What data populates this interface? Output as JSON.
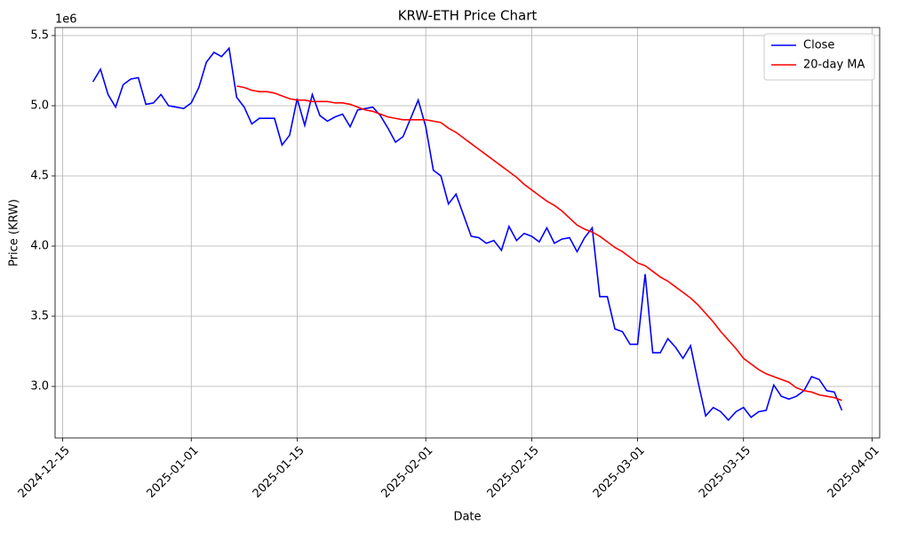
{
  "chart_data": {
    "type": "line",
    "title": "KRW-ETH Price Chart",
    "x_label": "Date",
    "y_label": "Price (KRW)",
    "y_offset_label": "1e6",
    "x": [
      "2024-12-19",
      "2024-12-20",
      "2024-12-21",
      "2024-12-22",
      "2024-12-23",
      "2024-12-24",
      "2024-12-25",
      "2024-12-26",
      "2024-12-27",
      "2024-12-28",
      "2024-12-29",
      "2024-12-30",
      "2024-12-31",
      "2025-01-01",
      "2025-01-02",
      "2025-01-03",
      "2025-01-04",
      "2025-01-05",
      "2025-01-06",
      "2025-01-07",
      "2025-01-08",
      "2025-01-09",
      "2025-01-10",
      "2025-01-11",
      "2025-01-12",
      "2025-01-13",
      "2025-01-14",
      "2025-01-15",
      "2025-01-16",
      "2025-01-17",
      "2025-01-18",
      "2025-01-19",
      "2025-01-20",
      "2025-01-21",
      "2025-01-22",
      "2025-01-23",
      "2025-01-24",
      "2025-01-25",
      "2025-01-26",
      "2025-01-27",
      "2025-01-28",
      "2025-01-29",
      "2025-01-30",
      "2025-01-31",
      "2025-02-01",
      "2025-02-02",
      "2025-02-03",
      "2025-02-04",
      "2025-02-05",
      "2025-02-06",
      "2025-02-07",
      "2025-02-08",
      "2025-02-09",
      "2025-02-10",
      "2025-02-11",
      "2025-02-12",
      "2025-02-13",
      "2025-02-14",
      "2025-02-15",
      "2025-02-16",
      "2025-02-17",
      "2025-02-18",
      "2025-02-19",
      "2025-02-20",
      "2025-02-21",
      "2025-02-22",
      "2025-02-23",
      "2025-02-24",
      "2025-02-25",
      "2025-02-26",
      "2025-02-27",
      "2025-02-28",
      "2025-03-01",
      "2025-03-02",
      "2025-03-03",
      "2025-03-04",
      "2025-03-05",
      "2025-03-06",
      "2025-03-07",
      "2025-03-08",
      "2025-03-09",
      "2025-03-10",
      "2025-03-11",
      "2025-03-12",
      "2025-03-13",
      "2025-03-14",
      "2025-03-15",
      "2025-03-16",
      "2025-03-17",
      "2025-03-18",
      "2025-03-19",
      "2025-03-20",
      "2025-03-21",
      "2025-03-22",
      "2025-03-23",
      "2025-03-24",
      "2025-03-25",
      "2025-03-26",
      "2025-03-27",
      "2025-03-28"
    ],
    "series": [
      {
        "name": "Close",
        "color": "#0000ff",
        "values": [
          5170000,
          5260000,
          5080000,
          4990000,
          5150000,
          5190000,
          5200000,
          5010000,
          5020000,
          5080000,
          5000000,
          4990000,
          4980000,
          5020000,
          5130000,
          5310000,
          5380000,
          5350000,
          5410000,
          5060000,
          4990000,
          4870000,
          4910000,
          4910000,
          4910000,
          4720000,
          4790000,
          5050000,
          4860000,
          5080000,
          4930000,
          4890000,
          4920000,
          4940000,
          4850000,
          4970000,
          4980000,
          4990000,
          4930000,
          4840000,
          4740000,
          4780000,
          4910000,
          5040000,
          4850000,
          4540000,
          4500000,
          4300000,
          4370000,
          4220000,
          4070000,
          4060000,
          4020000,
          4040000,
          3970000,
          4140000,
          4040000,
          4090000,
          4070000,
          4030000,
          4130000,
          4020000,
          4050000,
          4060000,
          3960000,
          4060000,
          4130000,
          3640000,
          3640000,
          3410000,
          3390000,
          3300000,
          3300000,
          3800000,
          3240000,
          3240000,
          3340000,
          3280000,
          3200000,
          3290000,
          3030000,
          2790000,
          2850000,
          2820000,
          2760000,
          2820000,
          2850000,
          2780000,
          2820000,
          2830000,
          3010000,
          2930000,
          2910000,
          2930000,
          2970000,
          3070000,
          3050000,
          2970000,
          2960000,
          2830000
        ]
      },
      {
        "name": "20-day MA",
        "color": "#ff0000",
        "values": [
          null,
          null,
          null,
          null,
          null,
          null,
          null,
          null,
          null,
          null,
          null,
          null,
          null,
          null,
          null,
          null,
          null,
          null,
          null,
          5140000,
          5130000,
          5110000,
          5100000,
          5100000,
          5090000,
          5070000,
          5050000,
          5040000,
          5040000,
          5030000,
          5030000,
          5030000,
          5020000,
          5020000,
          5010000,
          4990000,
          4970000,
          4960000,
          4940000,
          4920000,
          4910000,
          4900000,
          4900000,
          4900000,
          4900000,
          4890000,
          4880000,
          4840000,
          4810000,
          4770000,
          4730000,
          4690000,
          4650000,
          4610000,
          4570000,
          4530000,
          4490000,
          4440000,
          4400000,
          4360000,
          4320000,
          4290000,
          4250000,
          4200000,
          4150000,
          4120000,
          4100000,
          4070000,
          4030000,
          3990000,
          3960000,
          3920000,
          3880000,
          3860000,
          3820000,
          3780000,
          3750000,
          3710000,
          3670000,
          3630000,
          3580000,
          3520000,
          3460000,
          3390000,
          3330000,
          3270000,
          3200000,
          3160000,
          3120000,
          3090000,
          3070000,
          3050000,
          3030000,
          2990000,
          2970000,
          2960000,
          2940000,
          2930000,
          2920000,
          2900000
        ]
      }
    ],
    "xlim": [
      "2024-12-14",
      "2025-04-02"
    ],
    "xticks": [
      "2024-12-15",
      "2025-01-01",
      "2025-01-15",
      "2025-02-01",
      "2025-02-15",
      "2025-03-01",
      "2025-03-15",
      "2025-04-01"
    ],
    "ylim": [
      2633000,
      5557000
    ],
    "yticks": [
      {
        "value": 3000000,
        "label": "3.0"
      },
      {
        "value": 3500000,
        "label": "3.5"
      },
      {
        "value": 4000000,
        "label": "4.0"
      },
      {
        "value": 4500000,
        "label": "4.5"
      },
      {
        "value": 5000000,
        "label": "5.0"
      },
      {
        "value": 5500000,
        "label": "5.5"
      }
    ],
    "grid": true,
    "legend": "upper right"
  }
}
